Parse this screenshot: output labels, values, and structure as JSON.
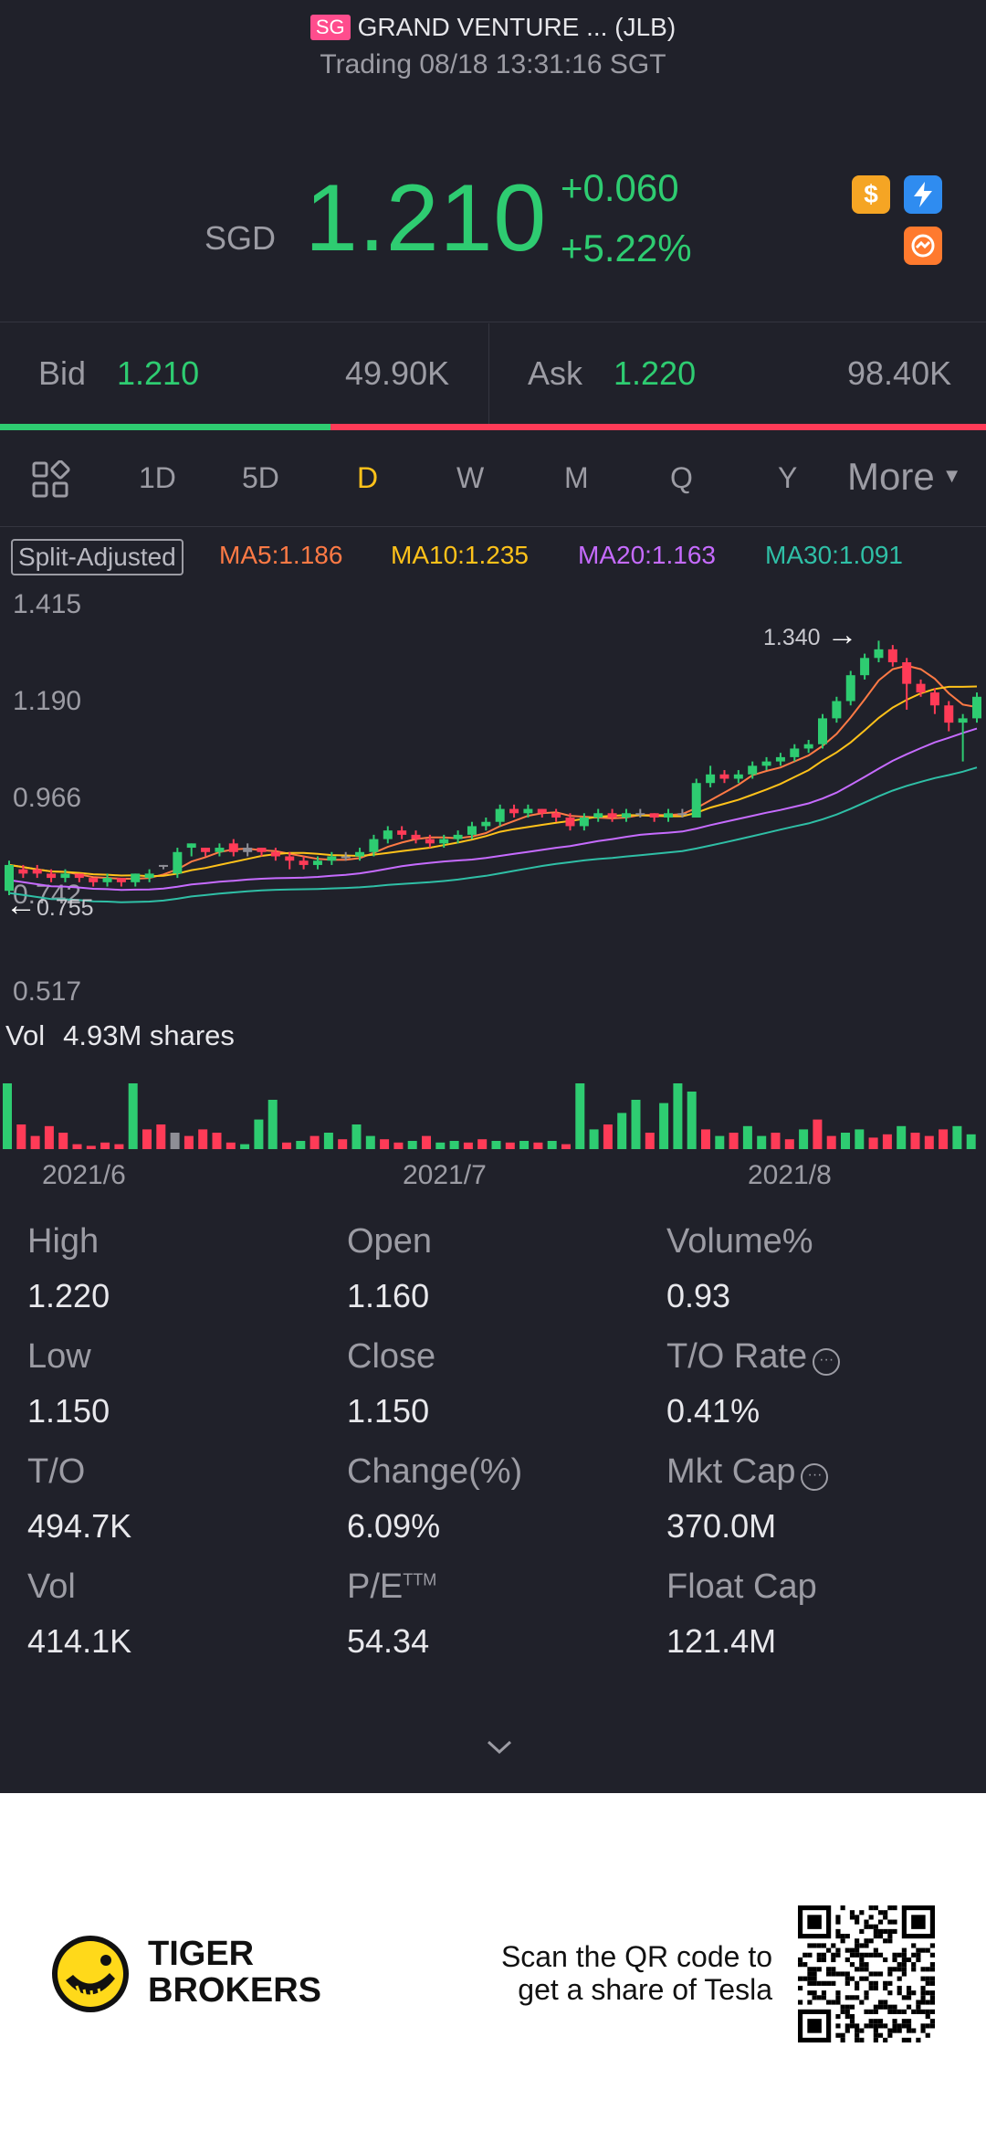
{
  "header": {
    "market_badge": "SG",
    "title": "GRAND VENTURE ... (JLB)",
    "status": "Trading 08/18 13:31:16 SGT"
  },
  "quote": {
    "currency": "SGD",
    "price": "1.210",
    "change": "+0.060",
    "change_pct": "+5.22%",
    "icons": [
      "dollar-icon",
      "lightning-icon",
      "trade-icon"
    ],
    "colors": {
      "up": "#2ecc71",
      "down": "#ff3b57",
      "accent": "#ffc21a"
    }
  },
  "bid_ask": {
    "bid_label": "Bid",
    "bid_price": "1.210",
    "bid_size": "49.90K",
    "ask_label": "Ask",
    "ask_price": "1.220",
    "ask_size": "98.40K",
    "bid_ratio": 0.335
  },
  "tabs": {
    "grid_icon": "grid-icon",
    "items": [
      "1D",
      "5D",
      "D",
      "W",
      "M",
      "Q",
      "Y"
    ],
    "active": "D",
    "more": "More"
  },
  "indicators": {
    "split": "Split-Adjusted",
    "ma5": "MA5:1.186",
    "ma10": "MA10:1.235",
    "ma20": "MA20:1.163",
    "ma30": "MA30:1.091"
  },
  "chart_data": {
    "type": "candlestick",
    "y_ticks": [
      "1.415",
      "1.190",
      "0.966",
      "0.742",
      "0.517"
    ],
    "high_marker": "1.340",
    "low_marker": "0.755",
    "x_ticks": [
      "2021/6",
      "2021/7",
      "2021/8"
    ],
    "volume_label": "Vol",
    "volume_value": "4.93M shares",
    "ylim": [
      0.517,
      1.415
    ],
    "candles": [
      [
        0.76,
        0.82,
        0.75,
        0.83,
        "up"
      ],
      [
        0.8,
        0.81,
        0.79,
        0.82,
        "down"
      ],
      [
        0.81,
        0.8,
        0.79,
        0.82,
        "down"
      ],
      [
        0.8,
        0.79,
        0.78,
        0.81,
        "down"
      ],
      [
        0.79,
        0.8,
        0.78,
        0.81,
        "up"
      ],
      [
        0.8,
        0.79,
        0.78,
        0.8,
        "down"
      ],
      [
        0.79,
        0.78,
        0.77,
        0.79,
        "down"
      ],
      [
        0.78,
        0.79,
        0.77,
        0.8,
        "up"
      ],
      [
        0.79,
        0.78,
        0.77,
        0.79,
        "down"
      ],
      [
        0.78,
        0.8,
        0.77,
        0.8,
        "up"
      ],
      [
        0.79,
        0.8,
        0.78,
        0.81,
        "up"
      ],
      [
        0.82,
        0.82,
        0.81,
        0.82,
        "flat"
      ],
      [
        0.8,
        0.85,
        0.79,
        0.86,
        "up"
      ],
      [
        0.86,
        0.87,
        0.84,
        0.87,
        "up"
      ],
      [
        0.86,
        0.85,
        0.84,
        0.86,
        "down"
      ],
      [
        0.85,
        0.86,
        0.84,
        0.87,
        "up"
      ],
      [
        0.87,
        0.85,
        0.84,
        0.88,
        "down"
      ],
      [
        0.85,
        0.86,
        0.84,
        0.87,
        "flat"
      ],
      [
        0.86,
        0.85,
        0.84,
        0.86,
        "down"
      ],
      [
        0.85,
        0.84,
        0.83,
        0.86,
        "down"
      ],
      [
        0.84,
        0.83,
        0.81,
        0.85,
        "down"
      ],
      [
        0.83,
        0.82,
        0.81,
        0.84,
        "down"
      ],
      [
        0.82,
        0.83,
        0.81,
        0.84,
        "up"
      ],
      [
        0.83,
        0.84,
        0.82,
        0.85,
        "up"
      ],
      [
        0.84,
        0.84,
        0.83,
        0.85,
        "flat"
      ],
      [
        0.84,
        0.85,
        0.83,
        0.86,
        "up"
      ],
      [
        0.85,
        0.88,
        0.84,
        0.89,
        "up"
      ],
      [
        0.88,
        0.9,
        0.87,
        0.91,
        "up"
      ],
      [
        0.9,
        0.89,
        0.88,
        0.91,
        "down"
      ],
      [
        0.89,
        0.88,
        0.87,
        0.9,
        "down"
      ],
      [
        0.88,
        0.87,
        0.86,
        0.89,
        "down"
      ],
      [
        0.87,
        0.88,
        0.86,
        0.89,
        "up"
      ],
      [
        0.88,
        0.89,
        0.87,
        0.9,
        "up"
      ],
      [
        0.89,
        0.91,
        0.88,
        0.92,
        "up"
      ],
      [
        0.91,
        0.92,
        0.9,
        0.93,
        "up"
      ],
      [
        0.92,
        0.95,
        0.91,
        0.96,
        "up"
      ],
      [
        0.95,
        0.94,
        0.93,
        0.96,
        "down"
      ],
      [
        0.94,
        0.95,
        0.93,
        0.96,
        "up"
      ],
      [
        0.95,
        0.94,
        0.93,
        0.95,
        "down"
      ],
      [
        0.94,
        0.93,
        0.92,
        0.95,
        "down"
      ],
      [
        0.93,
        0.91,
        0.9,
        0.94,
        "down"
      ],
      [
        0.91,
        0.93,
        0.9,
        0.94,
        "up"
      ],
      [
        0.93,
        0.94,
        0.92,
        0.95,
        "up"
      ],
      [
        0.94,
        0.93,
        0.92,
        0.95,
        "down"
      ],
      [
        0.93,
        0.94,
        0.92,
        0.95,
        "up"
      ],
      [
        0.94,
        0.94,
        0.93,
        0.95,
        "flat"
      ],
      [
        0.94,
        0.93,
        0.92,
        0.94,
        "down"
      ],
      [
        0.93,
        0.94,
        0.92,
        0.95,
        "up"
      ],
      [
        0.94,
        0.94,
        0.93,
        0.95,
        "flat"
      ],
      [
        0.93,
        1.01,
        0.93,
        1.02,
        "up"
      ],
      [
        1.01,
        1.03,
        1.0,
        1.05,
        "up"
      ],
      [
        1.03,
        1.02,
        1.01,
        1.04,
        "down"
      ],
      [
        1.02,
        1.03,
        1.01,
        1.04,
        "up"
      ],
      [
        1.03,
        1.05,
        1.02,
        1.06,
        "up"
      ],
      [
        1.05,
        1.06,
        1.04,
        1.07,
        "up"
      ],
      [
        1.06,
        1.07,
        1.05,
        1.08,
        "up"
      ],
      [
        1.07,
        1.09,
        1.06,
        1.1,
        "up"
      ],
      [
        1.09,
        1.1,
        1.08,
        1.11,
        "up"
      ],
      [
        1.1,
        1.16,
        1.09,
        1.17,
        "up"
      ],
      [
        1.16,
        1.2,
        1.15,
        1.21,
        "up"
      ],
      [
        1.2,
        1.26,
        1.19,
        1.27,
        "up"
      ],
      [
        1.26,
        1.3,
        1.25,
        1.31,
        "up"
      ],
      [
        1.3,
        1.32,
        1.29,
        1.34,
        "up"
      ],
      [
        1.32,
        1.29,
        1.28,
        1.33,
        "down"
      ],
      [
        1.29,
        1.24,
        1.18,
        1.3,
        "down"
      ],
      [
        1.24,
        1.22,
        1.21,
        1.25,
        "down"
      ],
      [
        1.22,
        1.19,
        1.17,
        1.23,
        "down"
      ],
      [
        1.19,
        1.15,
        1.13,
        1.2,
        "down"
      ],
      [
        1.15,
        1.16,
        1.06,
        1.17,
        "up"
      ],
      [
        1.16,
        1.21,
        1.15,
        1.22,
        "up"
      ]
    ],
    "volume": [
      40,
      15,
      8,
      14,
      10,
      3,
      2,
      4,
      3,
      40,
      12,
      15,
      10,
      8,
      12,
      10,
      4,
      3,
      18,
      30,
      4,
      5,
      8,
      10,
      6,
      15,
      8,
      6,
      4,
      5,
      8,
      4,
      5,
      4,
      6,
      5,
      4,
      5,
      4,
      5,
      3,
      40,
      12,
      15,
      22,
      30,
      10,
      28,
      40,
      35,
      12,
      8,
      10,
      14,
      8,
      10,
      6,
      12,
      18,
      8,
      10,
      12,
      7,
      9,
      14,
      10,
      8,
      12,
      14,
      9
    ],
    "volume_colors": [
      "up",
      "down",
      "down",
      "down",
      "down",
      "down",
      "down",
      "down",
      "down",
      "up",
      "down",
      "down",
      "flat",
      "down",
      "down",
      "down",
      "down",
      "up",
      "up",
      "up",
      "down",
      "up",
      "down",
      "up",
      "down",
      "up",
      "up",
      "down",
      "down",
      "up",
      "down",
      "up",
      "up",
      "down",
      "down",
      "up",
      "down",
      "up",
      "down",
      "up",
      "down",
      "up",
      "up",
      "down",
      "up",
      "up",
      "down",
      "up",
      "up",
      "up",
      "down",
      "up",
      "down",
      "up",
      "up",
      "down",
      "down",
      "up",
      "down",
      "down",
      "up",
      "up",
      "down",
      "down",
      "up",
      "down",
      "down",
      "down",
      "up",
      "up"
    ]
  },
  "stats": [
    {
      "label": "High",
      "value": "1.220"
    },
    {
      "label": "Open",
      "value": "1.160"
    },
    {
      "label": "Volume%",
      "value": "0.93"
    },
    {
      "label": "Low",
      "value": "1.150"
    },
    {
      "label": "Close",
      "value": "1.150"
    },
    {
      "label": "T/O Rate",
      "value": "0.41%"
    },
    {
      "label": "T/O",
      "value": "494.7K"
    },
    {
      "label": "Change(%)",
      "value": "6.09%"
    },
    {
      "label": "Mkt Cap",
      "value": "370.0M"
    },
    {
      "label": "Vol",
      "value": "414.1K"
    },
    {
      "label": "P/E",
      "value": "54.34",
      "sup": "TTM"
    },
    {
      "label": "Float Cap",
      "value": "121.4M"
    }
  ],
  "footer": {
    "brand_line1": "TIGER",
    "brand_line2": "BROKERS",
    "scan_line1": "Scan the QR code to",
    "scan_line2": "get a share of Tesla"
  }
}
